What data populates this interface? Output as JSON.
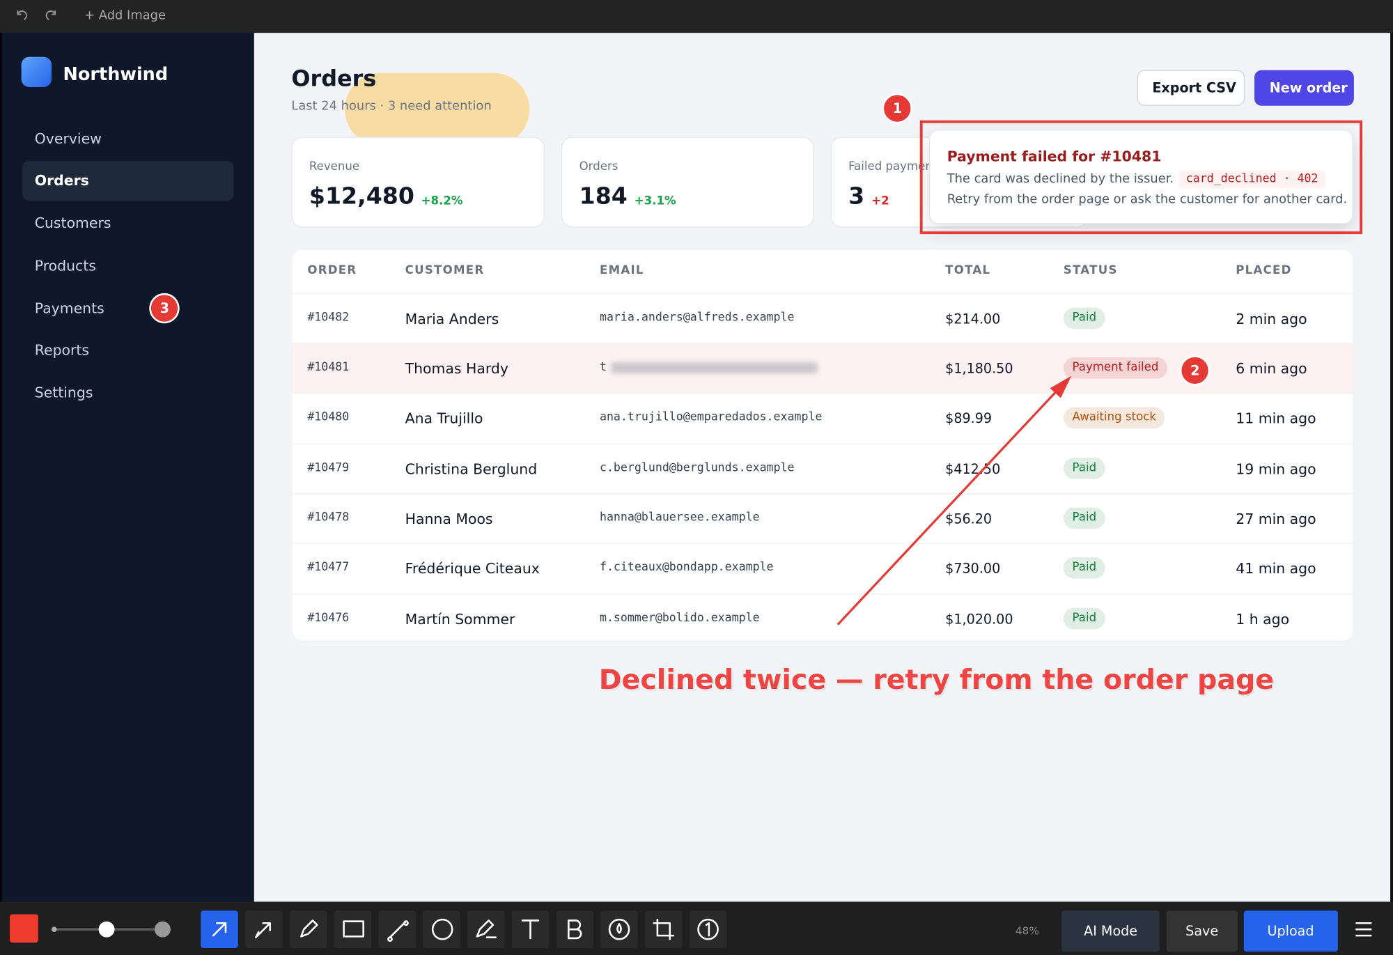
{
  "app_toolbar": {
    "add_image": "+ Add Image",
    "zoom": "48%",
    "buttons": [
      "AI Mode",
      "Save",
      "Upload"
    ]
  },
  "sidebar": {
    "brand": "Northwind",
    "nav": [
      "Overview",
      "Orders",
      "Customers",
      "Products",
      "Payments",
      "Reports",
      "Settings"
    ]
  },
  "header": {
    "title": "Orders",
    "subtitle": "Last 24 hours · 3 need attention",
    "actions": [
      "Export CSV",
      "New order"
    ]
  },
  "stats": [
    {
      "label": "Revenue",
      "value": "$12,480",
      "delta": "+8.2%",
      "color": "#16a34a"
    },
    {
      "label": "Orders",
      "value": "184",
      "delta": "+3.1%",
      "color": "#16a34a"
    },
    {
      "label": "Failed payments",
      "value": "3",
      "delta": "+2",
      "color": "#dc2626"
    }
  ],
  "table": {
    "columns": [
      "ORDER",
      "CUSTOMER",
      "EMAIL",
      "TOTAL",
      "STATUS",
      "PLACED"
    ],
    "rows": [
      [
        "#10482",
        "Maria Anders",
        "maria.anders@alfreds.example",
        "$214.00",
        "Paid",
        "2 min ago"
      ],
      [
        "#10481",
        "Thomas Hardy",
        "t",
        "$1,180.50",
        "Payment failed",
        "6 min ago"
      ],
      [
        "#10480",
        "Ana Trujillo",
        "ana.trujillo@emparedados.example",
        "$89.99",
        "Awaiting stock",
        "11 min ago"
      ],
      [
        "#10479",
        "Christina Berglund",
        "c.berglund@berglunds.example",
        "$412.50",
        "Paid",
        "19 min ago"
      ],
      [
        "#10478",
        "Hanna Moos",
        "hanna@blauersee.example",
        "$56.20",
        "Paid",
        "27 min ago"
      ],
      [
        "#10477",
        "Frédérique Citeaux",
        "f.citeaux@bondapp.example",
        "$730.00",
        "Paid",
        "41 min ago"
      ],
      [
        "#10476",
        "Martín Sommer",
        "m.sommer@bolido.example",
        "$1,020.00",
        "Paid",
        "1 h ago"
      ]
    ],
    "status_colors": [
      "#15803d",
      "#b91c1c",
      "#b45309",
      "#15803d",
      "#15803d",
      "#15803d",
      "#15803d"
    ]
  },
  "popover": {
    "title": "Payment failed for #10481",
    "text": "The card was declined by the issuer.",
    "code": "card_declined · 402",
    "hint": "Retry from the order page or ask the customer for another card."
  },
  "annotations": {
    "markers": [
      "1",
      "2",
      "3"
    ],
    "callout": "Declined twice — retry from the order page"
  }
}
